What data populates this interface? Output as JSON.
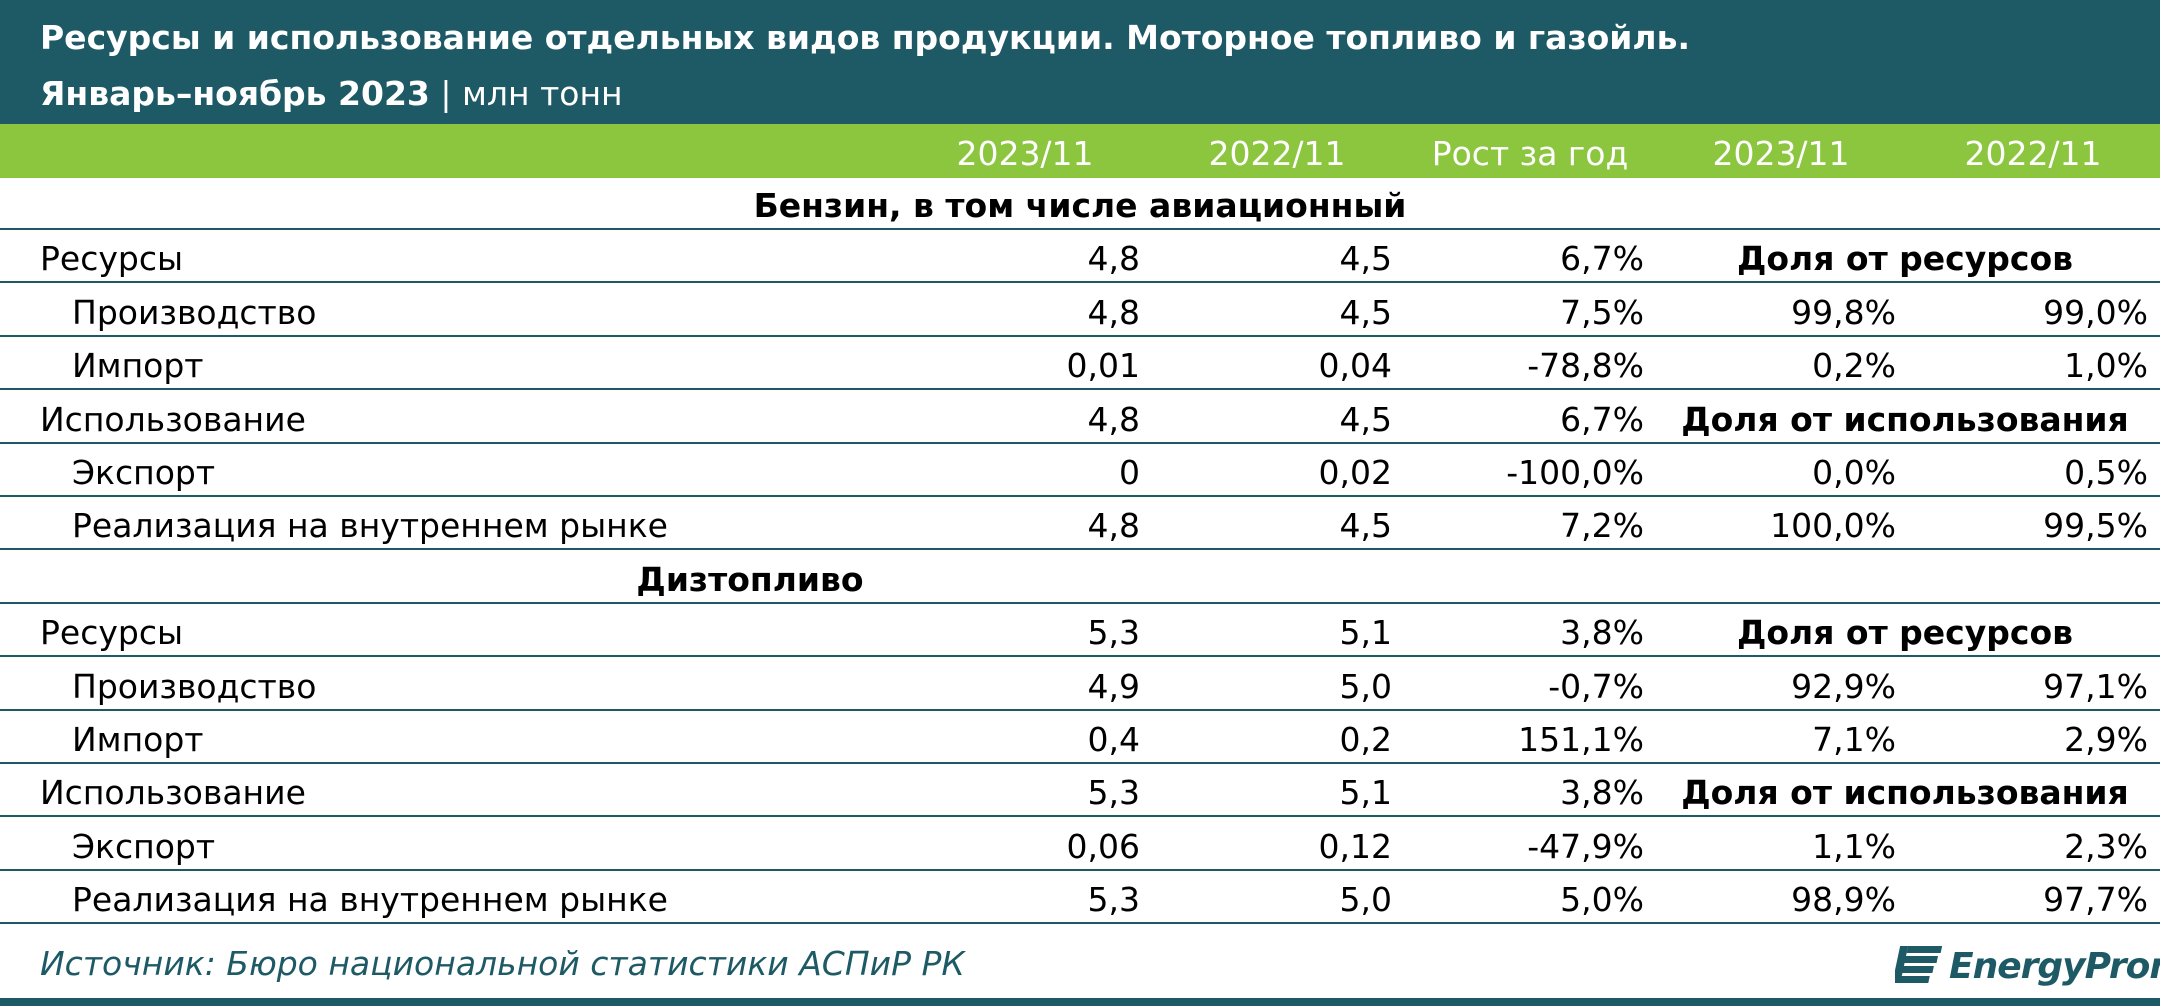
{
  "header": {
    "title": "Ресурсы и использование отдельных видов продукции. Моторное топливо и газойль.",
    "period": "Январь–ноябрь 2023",
    "separator": "|",
    "unit": "млн тонн"
  },
  "columns": [
    "2023/11",
    "2022/11",
    "Рост за год",
    "2023/11",
    "2022/11"
  ],
  "sections": [
    {
      "title": "Бензин, в том числе авиационный",
      "rows": [
        {
          "label": "Ресурсы",
          "v2023": "4,8",
          "v2022": "4,5",
          "growth": "6,7%",
          "share_header": "Доля от ресурсов"
        },
        {
          "label": "Производство",
          "v2023": "4,8",
          "v2022": "4,5",
          "growth": "7,5%",
          "share2023": "99,8%",
          "share2022": "99,0%"
        },
        {
          "label": "Импорт",
          "v2023": "0,01",
          "v2022": "0,04",
          "growth": "-78,8%",
          "share2023": "0,2%",
          "share2022": "1,0%"
        },
        {
          "label": "Использование",
          "v2023": "4,8",
          "v2022": "4,5",
          "growth": "6,7%",
          "share_header": "Доля от использования"
        },
        {
          "label": "Экспорт",
          "v2023": "0",
          "v2022": "0,02",
          "growth": "-100,0%",
          "share2023": "0,0%",
          "share2022": "0,5%"
        },
        {
          "label": "Реализация на внутреннем рынке",
          "v2023": "4,8",
          "v2022": "4,5",
          "growth": "7,2%",
          "share2023": "100,0%",
          "share2022": "99,5%"
        }
      ]
    },
    {
      "title": "Дизтопливо",
      "rows": [
        {
          "label": "Ресурсы",
          "v2023": "5,3",
          "v2022": "5,1",
          "growth": "3,8%",
          "share_header": "Доля от ресурсов"
        },
        {
          "label": "Производство",
          "v2023": "4,9",
          "v2022": "5,0",
          "growth": "-0,7%",
          "share2023": "92,9%",
          "share2022": "97,1%"
        },
        {
          "label": "Импорт",
          "v2023": "0,4",
          "v2022": "0,2",
          "growth": "151,1%",
          "share2023": "7,1%",
          "share2022": "2,9%"
        },
        {
          "label": "Использование",
          "v2023": "5,3",
          "v2022": "5,1",
          "growth": "3,8%",
          "share_header": "Доля от использования"
        },
        {
          "label": "Экспорт",
          "v2023": "0,06",
          "v2022": "0,12",
          "growth": "-47,9%",
          "share2023": "1,1%",
          "share2022": "2,3%"
        },
        {
          "label": "Реализация на внутреннем рынке",
          "v2023": "5,3",
          "v2022": "5,0",
          "growth": "5,0%",
          "share2023": "98,9%",
          "share2022": "97,7%"
        }
      ]
    }
  ],
  "footer": {
    "source": "Источник: Бюро национальной статистики АСПиР РК",
    "logo_text": "EnergyProm"
  },
  "colors": {
    "header_bg": "#1e5a66",
    "accent_green": "#8cc63e",
    "text": "#000000"
  }
}
